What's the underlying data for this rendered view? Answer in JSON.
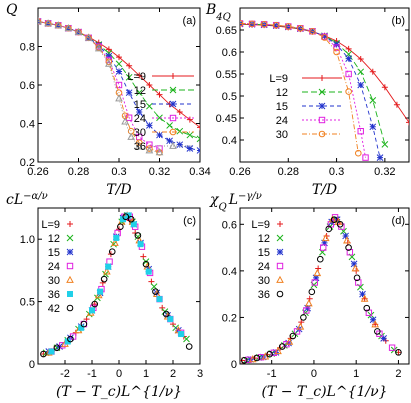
{
  "chart_data": [
    {
      "panel": "(a)",
      "type": "line",
      "ylabel": "Q",
      "xlabel": "T/D",
      "xlim": [
        0.26,
        0.34
      ],
      "ylim": [
        0.2,
        1.0
      ],
      "xticks": [
        "0.26",
        "0.28",
        "0.3",
        "0.32",
        "0.34"
      ],
      "yticks": [
        "0.2",
        "0.4",
        "0.6",
        "0.8"
      ],
      "legend_position": "bottom-right",
      "series": [
        {
          "name": "L=9",
          "color": "#e41a1c",
          "marker": "plus",
          "x": [
            0.26,
            0.265,
            0.27,
            0.275,
            0.28,
            0.285,
            0.29,
            0.295,
            0.3,
            0.305,
            0.31,
            0.315,
            0.32,
            0.325,
            0.33,
            0.335,
            0.34
          ],
          "y": [
            0.93,
            0.92,
            0.91,
            0.895,
            0.875,
            0.85,
            0.82,
            0.785,
            0.745,
            0.7,
            0.65,
            0.6,
            0.55,
            0.5,
            0.46,
            0.42,
            0.38
          ]
        },
        {
          "name": "12",
          "color": "#1bb31b",
          "marker": "cross",
          "x": [
            0.26,
            0.265,
            0.27,
            0.275,
            0.28,
            0.285,
            0.29,
            0.295,
            0.3,
            0.305,
            0.31,
            0.315,
            0.32,
            0.325,
            0.33,
            0.335,
            0.34
          ],
          "y": [
            0.93,
            0.92,
            0.91,
            0.895,
            0.875,
            0.845,
            0.81,
            0.765,
            0.71,
            0.64,
            0.56,
            0.49,
            0.43,
            0.39,
            0.36,
            0.34,
            0.32
          ]
        },
        {
          "name": "15",
          "color": "#2233cc",
          "marker": "star",
          "x": [
            0.26,
            0.265,
            0.27,
            0.275,
            0.28,
            0.285,
            0.29,
            0.295,
            0.3,
            0.305,
            0.31,
            0.315,
            0.32,
            0.325,
            0.33,
            0.335,
            0.34
          ],
          "y": [
            0.93,
            0.92,
            0.91,
            0.895,
            0.875,
            0.845,
            0.805,
            0.75,
            0.67,
            0.56,
            0.46,
            0.39,
            0.34,
            0.31,
            0.29,
            0.27,
            0.26
          ]
        },
        {
          "name": "24",
          "color": "#e020e0",
          "marker": "square",
          "x": [
            0.26,
            0.265,
            0.27,
            0.275,
            0.28,
            0.285,
            0.29,
            0.295,
            0.3,
            0.305,
            0.31,
            0.315,
            0.32
          ],
          "y": [
            0.93,
            0.92,
            0.91,
            0.895,
            0.875,
            0.845,
            0.8,
            0.73,
            0.6,
            0.43,
            0.33,
            0.29,
            0.27
          ]
        },
        {
          "name": "30",
          "color": "#f08020",
          "marker": "circle",
          "x": [
            0.26,
            0.265,
            0.27,
            0.275,
            0.28,
            0.285,
            0.29,
            0.295,
            0.3,
            0.303,
            0.306,
            0.31,
            0.315,
            0.32
          ],
          "y": [
            0.93,
            0.92,
            0.91,
            0.895,
            0.875,
            0.845,
            0.795,
            0.72,
            0.56,
            0.44,
            0.36,
            0.3,
            0.27,
            0.25
          ]
        },
        {
          "name": "36",
          "color": "#999999",
          "marker": "triangle",
          "x": [
            0.26,
            0.265,
            0.27,
            0.275,
            0.28,
            0.285,
            0.29,
            0.295,
            0.3,
            0.303,
            0.306,
            0.31,
            0.315,
            0.32
          ],
          "y": [
            0.93,
            0.92,
            0.91,
            0.895,
            0.875,
            0.845,
            0.79,
            0.71,
            0.53,
            0.41,
            0.33,
            0.28,
            0.26,
            0.25
          ]
        }
      ]
    },
    {
      "panel": "(b)",
      "type": "line",
      "ylabel": "B_4Q",
      "xlabel": "T/D",
      "xlim": [
        0.26,
        0.33
      ],
      "ylim": [
        0.35,
        0.7
      ],
      "xticks": [
        "0.26",
        "0.28",
        "0.3",
        "0.32"
      ],
      "yticks": [
        "0.4",
        "0.45",
        "0.5",
        "0.55",
        "0.6",
        "0.65"
      ],
      "legend_position": "bottom-left",
      "series": [
        {
          "name": "L=9",
          "color": "#e41a1c",
          "marker": "plus",
          "x": [
            0.26,
            0.265,
            0.27,
            0.275,
            0.28,
            0.285,
            0.29,
            0.295,
            0.3,
            0.305,
            0.31,
            0.315,
            0.32,
            0.325,
            0.33
          ],
          "y": [
            0.663,
            0.662,
            0.661,
            0.659,
            0.656,
            0.652,
            0.646,
            0.637,
            0.625,
            0.607,
            0.584,
            0.555,
            0.52,
            0.48,
            0.44
          ]
        },
        {
          "name": "12",
          "color": "#1bb31b",
          "marker": "cross",
          "x": [
            0.26,
            0.265,
            0.27,
            0.275,
            0.28,
            0.285,
            0.29,
            0.295,
            0.3,
            0.305,
            0.31,
            0.315,
            0.32
          ],
          "y": [
            0.664,
            0.663,
            0.662,
            0.66,
            0.657,
            0.653,
            0.647,
            0.637,
            0.62,
            0.595,
            0.555,
            0.49,
            0.39
          ]
        },
        {
          "name": "15",
          "color": "#2233cc",
          "marker": "star",
          "x": [
            0.26,
            0.265,
            0.27,
            0.275,
            0.28,
            0.285,
            0.29,
            0.295,
            0.3,
            0.305,
            0.31,
            0.315,
            0.318
          ],
          "y": [
            0.664,
            0.663,
            0.662,
            0.66,
            0.657,
            0.653,
            0.647,
            0.636,
            0.617,
            0.585,
            0.525,
            0.43,
            0.36
          ]
        },
        {
          "name": "24",
          "color": "#e020e0",
          "marker": "square",
          "x": [
            0.26,
            0.265,
            0.27,
            0.275,
            0.28,
            0.285,
            0.29,
            0.295,
            0.3,
            0.305,
            0.31,
            0.312
          ],
          "y": [
            0.665,
            0.664,
            0.663,
            0.661,
            0.658,
            0.654,
            0.647,
            0.635,
            0.61,
            0.55,
            0.42,
            0.36
          ]
        },
        {
          "name": "30",
          "color": "#f08020",
          "marker": "circle",
          "x": [
            0.26,
            0.265,
            0.27,
            0.275,
            0.28,
            0.285,
            0.29,
            0.295,
            0.3,
            0.305,
            0.309
          ],
          "y": [
            0.665,
            0.664,
            0.663,
            0.661,
            0.658,
            0.654,
            0.647,
            0.633,
            0.6,
            0.51,
            0.37
          ]
        }
      ]
    },
    {
      "panel": "(c)",
      "type": "scatter",
      "ylabel": "cL^{-α/ν}",
      "xlabel": "(T − T_c)L^{1/ν}",
      "xlim": [
        -3,
        3
      ],
      "ylim": [
        0,
        1.25
      ],
      "xticks": [
        "-2",
        "-1",
        "0",
        "1",
        "2",
        "3"
      ],
      "yticks": [
        "0",
        "0.5",
        "1.0"
      ],
      "legend_position": "top-left",
      "series": [
        {
          "name": "L=9",
          "color": "#e41a1c",
          "marker": "plus",
          "x": [
            -2.8,
            -2.4,
            -2.0,
            -1.6,
            -1.2,
            -0.9,
            -0.6,
            -0.3,
            0.0,
            0.2,
            0.4,
            0.6,
            0.9,
            1.2,
            1.6,
            2.0,
            2.4
          ],
          "y": [
            0.08,
            0.12,
            0.17,
            0.25,
            0.36,
            0.48,
            0.65,
            0.88,
            1.08,
            1.18,
            1.15,
            1.05,
            0.86,
            0.66,
            0.45,
            0.32,
            0.22
          ]
        },
        {
          "name": "12",
          "color": "#1bb31b",
          "marker": "cross",
          "x": [
            -2.7,
            -2.3,
            -1.9,
            -1.5,
            -1.1,
            -0.8,
            -0.5,
            -0.2,
            0.1,
            0.3,
            0.5,
            0.7,
            1.0,
            1.3,
            1.7,
            2.1,
            2.5
          ],
          "y": [
            0.09,
            0.13,
            0.19,
            0.28,
            0.4,
            0.53,
            0.72,
            0.96,
            1.14,
            1.19,
            1.14,
            1.02,
            0.82,
            0.62,
            0.42,
            0.29,
            0.2
          ]
        },
        {
          "name": "15",
          "color": "#2233cc",
          "marker": "star",
          "x": [
            -2.6,
            -2.2,
            -1.8,
            -1.4,
            -1.0,
            -0.7,
            -0.4,
            -0.1,
            0.15,
            0.35,
            0.55,
            0.8,
            1.1,
            1.4,
            1.8,
            2.2
          ],
          "y": [
            0.1,
            0.14,
            0.21,
            0.3,
            0.43,
            0.57,
            0.78,
            1.02,
            1.17,
            1.19,
            1.12,
            0.97,
            0.76,
            0.57,
            0.39,
            0.27
          ]
        },
        {
          "name": "24",
          "color": "#e020e0",
          "marker": "square",
          "x": [
            -2.5,
            -2.1,
            -1.7,
            -1.3,
            -0.95,
            -0.65,
            -0.35,
            -0.05,
            0.2,
            0.4,
            0.6,
            0.85,
            1.15,
            1.5,
            1.9,
            2.3
          ],
          "y": [
            0.1,
            0.15,
            0.22,
            0.32,
            0.45,
            0.6,
            0.82,
            1.05,
            1.18,
            1.18,
            1.1,
            0.94,
            0.73,
            0.52,
            0.36,
            0.25
          ]
        },
        {
          "name": "30",
          "color": "#f08020",
          "marker": "triangle",
          "x": [
            -2.6,
            -2.0,
            -1.5,
            -1.05,
            -0.75,
            -0.45,
            -0.15,
            0.1,
            0.3,
            0.5,
            0.75,
            1.05,
            1.4,
            1.8,
            2.2
          ],
          "y": [
            0.09,
            0.16,
            0.27,
            0.41,
            0.55,
            0.74,
            0.97,
            1.14,
            1.19,
            1.14,
            0.99,
            0.78,
            0.56,
            0.38,
            0.27
          ]
        },
        {
          "name": "36",
          "color": "#20d0e8",
          "marker": "filledsquare",
          "x": [
            -2.5,
            -1.9,
            -1.4,
            -1.0,
            -0.7,
            -0.4,
            -0.1,
            0.15,
            0.35,
            0.55,
            0.8,
            1.1,
            1.5,
            1.9,
            2.3
          ],
          "y": [
            0.1,
            0.18,
            0.29,
            0.43,
            0.58,
            0.78,
            1.01,
            1.16,
            1.19,
            1.12,
            0.96,
            0.74,
            0.52,
            0.36,
            0.24
          ]
        },
        {
          "name": "42",
          "color": "#000000",
          "marker": "circle",
          "x": [
            -2.8,
            -2.3,
            -1.8,
            -1.3,
            -0.9,
            -0.55,
            -0.25,
            0.05,
            0.25,
            0.45,
            0.7,
            1.0,
            1.35,
            1.75,
            2.6
          ],
          "y": [
            0.08,
            0.13,
            0.2,
            0.32,
            0.48,
            0.68,
            0.9,
            1.1,
            1.18,
            1.16,
            1.03,
            0.8,
            0.58,
            0.4,
            0.14
          ]
        }
      ]
    },
    {
      "panel": "(d)",
      "type": "scatter",
      "ylabel": "χ_Q L^{-γ/ν}",
      "xlabel": "(T − T_c)L^{1/ν}",
      "xlim": [
        -1.75,
        2.25
      ],
      "ylim": [
        0,
        0.67
      ],
      "xticks": [
        "-1",
        "0",
        "1",
        "2"
      ],
      "yticks": [
        "0",
        "0.2",
        "0.4",
        "0.6"
      ],
      "legend_position": "top-left",
      "series": [
        {
          "name": "L=9",
          "color": "#e41a1c",
          "marker": "plus",
          "x": [
            -1.7,
            -1.4,
            -1.1,
            -0.8,
            -0.55,
            -0.3,
            -0.1,
            0.1,
            0.3,
            0.45,
            0.6,
            0.8,
            1.0,
            1.2,
            1.45,
            1.7,
            2.0
          ],
          "y": [
            0.015,
            0.025,
            0.04,
            0.07,
            0.11,
            0.18,
            0.28,
            0.41,
            0.55,
            0.62,
            0.61,
            0.52,
            0.4,
            0.28,
            0.17,
            0.1,
            0.05
          ]
        },
        {
          "name": "12",
          "color": "#1bb31b",
          "marker": "cross",
          "x": [
            -1.6,
            -1.3,
            -1.0,
            -0.7,
            -0.45,
            -0.2,
            0.0,
            0.2,
            0.38,
            0.52,
            0.7,
            0.9,
            1.1,
            1.35,
            1.6,
            1.9
          ],
          "y": [
            0.017,
            0.028,
            0.045,
            0.08,
            0.13,
            0.22,
            0.34,
            0.48,
            0.59,
            0.62,
            0.57,
            0.46,
            0.33,
            0.21,
            0.12,
            0.06
          ]
        },
        {
          "name": "15",
          "color": "#2233cc",
          "marker": "star",
          "x": [
            -1.5,
            -1.2,
            -0.9,
            -0.6,
            -0.35,
            -0.15,
            0.05,
            0.25,
            0.42,
            0.55,
            0.75,
            0.95,
            1.15,
            1.4,
            1.65
          ],
          "y": [
            0.02,
            0.03,
            0.05,
            0.09,
            0.15,
            0.24,
            0.37,
            0.52,
            0.61,
            0.62,
            0.55,
            0.43,
            0.3,
            0.19,
            0.11
          ]
        },
        {
          "name": "24",
          "color": "#e020e0",
          "marker": "square",
          "x": [
            -1.55,
            -1.25,
            -0.95,
            -0.65,
            -0.4,
            -0.18,
            0.02,
            0.22,
            0.4,
            0.5,
            0.65,
            0.85,
            1.05,
            1.3,
            1.55,
            1.85
          ],
          "y": [
            0.018,
            0.029,
            0.048,
            0.085,
            0.14,
            0.23,
            0.35,
            0.5,
            0.6,
            0.63,
            0.59,
            0.48,
            0.35,
            0.22,
            0.13,
            0.07
          ]
        },
        {
          "name": "30",
          "color": "#f08020",
          "marker": "triangle",
          "x": [
            -1.45,
            -1.15,
            -0.85,
            -0.58,
            -0.32,
            -0.12,
            0.08,
            0.28,
            0.44,
            0.58,
            0.78,
            0.98,
            1.2,
            1.45
          ],
          "y": [
            0.02,
            0.032,
            0.055,
            0.095,
            0.16,
            0.26,
            0.39,
            0.54,
            0.62,
            0.61,
            0.53,
            0.41,
            0.28,
            0.17
          ]
        },
        {
          "name": "36",
          "color": "#000000",
          "marker": "circle",
          "x": [
            -1.65,
            -1.35,
            -1.05,
            -0.75,
            -0.5,
            -0.25,
            -0.05,
            0.15,
            0.35,
            0.48,
            0.62,
            0.82,
            1.02,
            1.25,
            1.5,
            2.0
          ],
          "y": [
            0.016,
            0.026,
            0.042,
            0.075,
            0.12,
            0.2,
            0.31,
            0.45,
            0.58,
            0.62,
            0.6,
            0.5,
            0.37,
            0.24,
            0.14,
            0.05
          ]
        }
      ]
    }
  ]
}
